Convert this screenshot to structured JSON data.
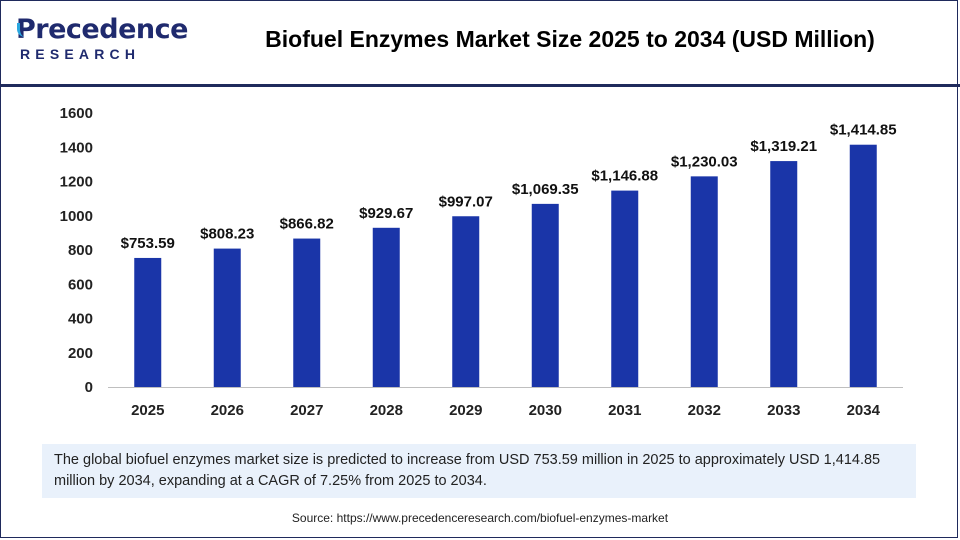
{
  "brand": {
    "name_top": "recedence",
    "name_initial": "P",
    "name_bottom": "RESEARCH"
  },
  "title": "Biofuel Enzymes Market Size 2025 to 2034 (USD Million)",
  "note": "The global biofuel enzymes market size is predicted to increase from USD 753.59 million in 2025 to approximately USD 1,414.85 million by 2034, expanding at a CAGR of 7.25% from 2025 to 2034.",
  "source": "Source: https://www.precedenceresearch.com/biofuel-enzymes-market",
  "colors": {
    "bar": "#1a35a8",
    "frame": "#1f2a5c",
    "note_bg": "#e9f1fb",
    "accent": "#2aa7df"
  },
  "chart_data": {
    "type": "bar",
    "title": "Biofuel Enzymes Market Size 2025 to 2034 (USD Million)",
    "categories": [
      "2025",
      "2026",
      "2027",
      "2028",
      "2029",
      "2030",
      "2031",
      "2032",
      "2033",
      "2034"
    ],
    "values": [
      753.59,
      808.23,
      866.82,
      929.67,
      997.07,
      1069.35,
      1146.88,
      1230.03,
      1319.21,
      1414.85
    ],
    "data_labels": [
      "$753.59",
      "$808.23",
      "$866.82",
      "$929.67",
      "$997.07",
      "$1,069.35",
      "$1,146.88",
      "$1,230.03",
      "$1,319.21",
      "$1,414.85"
    ],
    "yticks": [
      0,
      200,
      400,
      600,
      800,
      1000,
      1200,
      1400,
      1600
    ],
    "ylim": [
      0,
      1600
    ],
    "grid": false,
    "legend": "none"
  }
}
